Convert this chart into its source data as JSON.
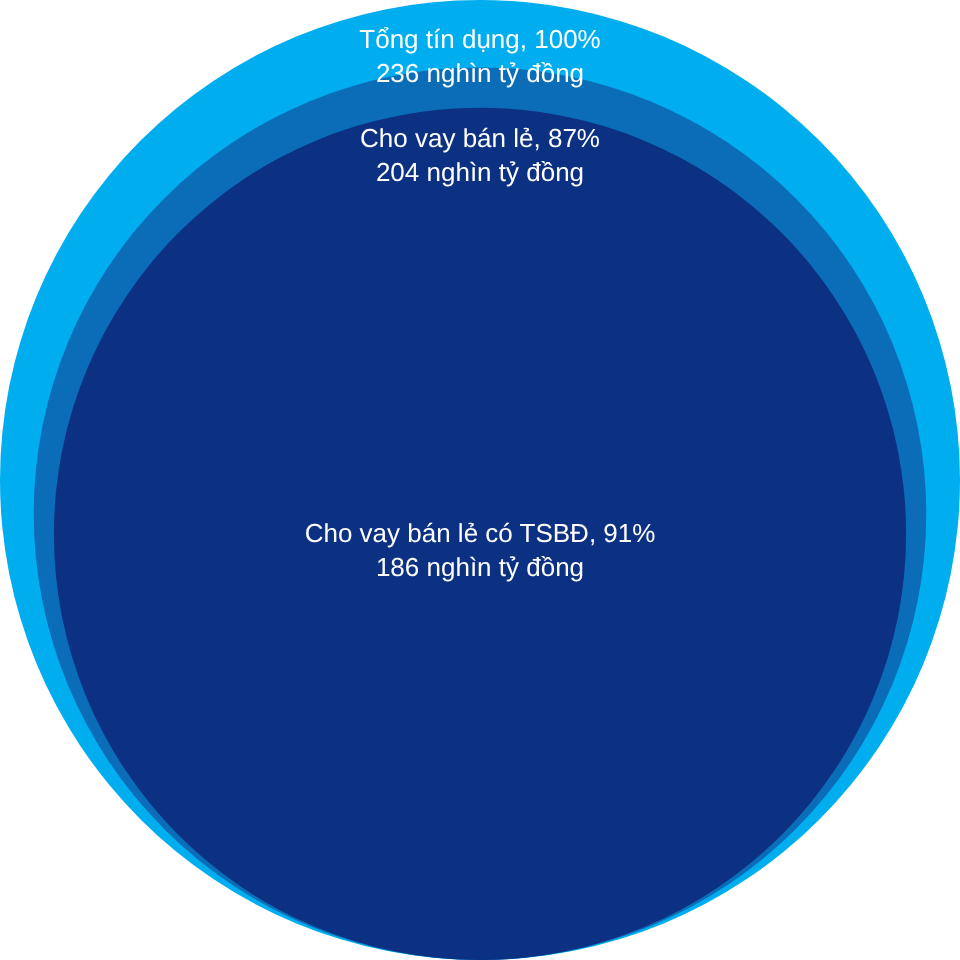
{
  "chart_data": {
    "type": "other",
    "categories": [
      "Tổng tín dụng, 100%",
      "Cho vay bán lẻ, 87%",
      "Cho vay bán lẻ có TSBĐ, 91%"
    ],
    "values": [
      236,
      204,
      186
    ],
    "value_labels": [
      "236 nghìn tỷ đồng",
      "204 nghìn tỷ đồng",
      "186 nghìn tỷ đồng"
    ],
    "colors": [
      "#00aeef",
      "#0b6db7",
      "#0c3183"
    ]
  }
}
